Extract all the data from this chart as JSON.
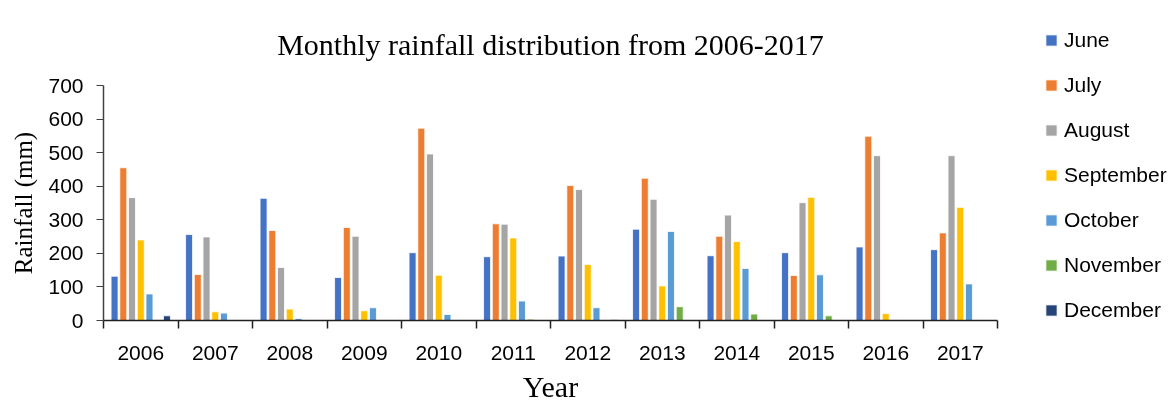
{
  "chart_data": {
    "type": "bar",
    "title": "Monthly rainfall distribution from 2006-2017",
    "xlabel": "Year",
    "ylabel": "Rainfall (mm)",
    "categories": [
      "2006",
      "2007",
      "2008",
      "2009",
      "2010",
      "2011",
      "2012",
      "2013",
      "2014",
      "2015",
      "2016",
      "2017"
    ],
    "series": [
      {
        "name": "June",
        "color": "#4472c4",
        "values": [
          132,
          256,
          364,
          128,
          202,
          190,
          192,
          272,
          193,
          202,
          219,
          211
        ]
      },
      {
        "name": "July",
        "color": "#ed7d31",
        "values": [
          455,
          137,
          268,
          277,
          573,
          288,
          402,
          424,
          251,
          134,
          549,
          261
        ]
      },
      {
        "name": "August",
        "color": "#a5a5a5",
        "values": [
          366,
          249,
          158,
          251,
          496,
          287,
          390,
          361,
          314,
          351,
          491,
          491
        ]
      },
      {
        "name": "September",
        "color": "#ffc000",
        "values": [
          240,
          26,
          34,
          29,
          135,
          246,
          167,
          103,
          235,
          367,
          21,
          337
        ]
      },
      {
        "name": "October",
        "color": "#5b9bd5",
        "values": [
          79,
          22,
          6,
          38,
          18,
          58,
          38,
          265,
          155,
          136,
          null,
          109
        ]
      },
      {
        "name": "November",
        "color": "#70ad47",
        "values": [
          null,
          null,
          null,
          null,
          null,
          4,
          null,
          41,
          19,
          14,
          null,
          null
        ]
      },
      {
        "name": "December",
        "color": "#264478",
        "values": [
          14,
          null,
          null,
          null,
          null,
          null,
          2,
          null,
          null,
          null,
          null,
          null
        ]
      }
    ],
    "ylim": [
      0,
      700
    ],
    "yticks": [
      0,
      100,
      200,
      300,
      400,
      500,
      600,
      700
    ],
    "grid": false,
    "legend": "right"
  }
}
